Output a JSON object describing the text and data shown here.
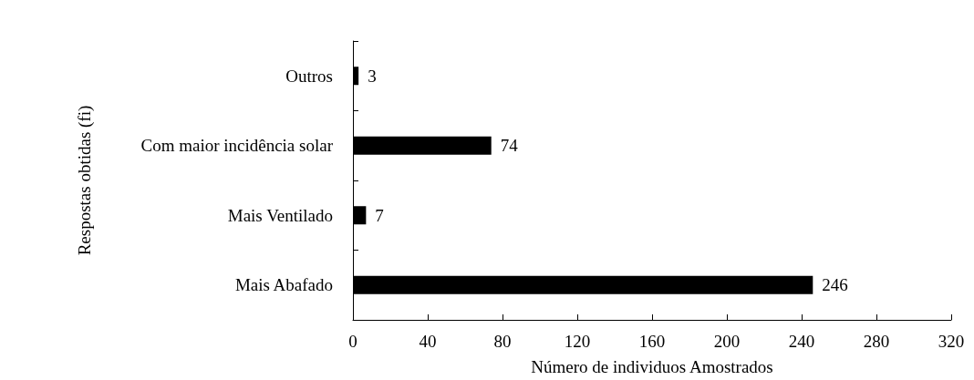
{
  "chart_data": {
    "type": "bar",
    "orientation": "horizontal",
    "xlabel": "Número de individuos Amostrados",
    "ylabel": "Respostas obtidas (fi)",
    "categories": [
      "Outros",
      "Com maior incidência solar",
      "Mais Ventilado",
      "Mais Abafado"
    ],
    "values": [
      3,
      74,
      7,
      246
    ],
    "colors": [
      "#000000",
      "#000000",
      "#000000",
      "#000000"
    ],
    "xlim": [
      0,
      320
    ],
    "xticks": [
      0,
      40,
      80,
      120,
      160,
      200,
      240,
      280,
      320
    ],
    "data_labels": true,
    "grid": false
  }
}
